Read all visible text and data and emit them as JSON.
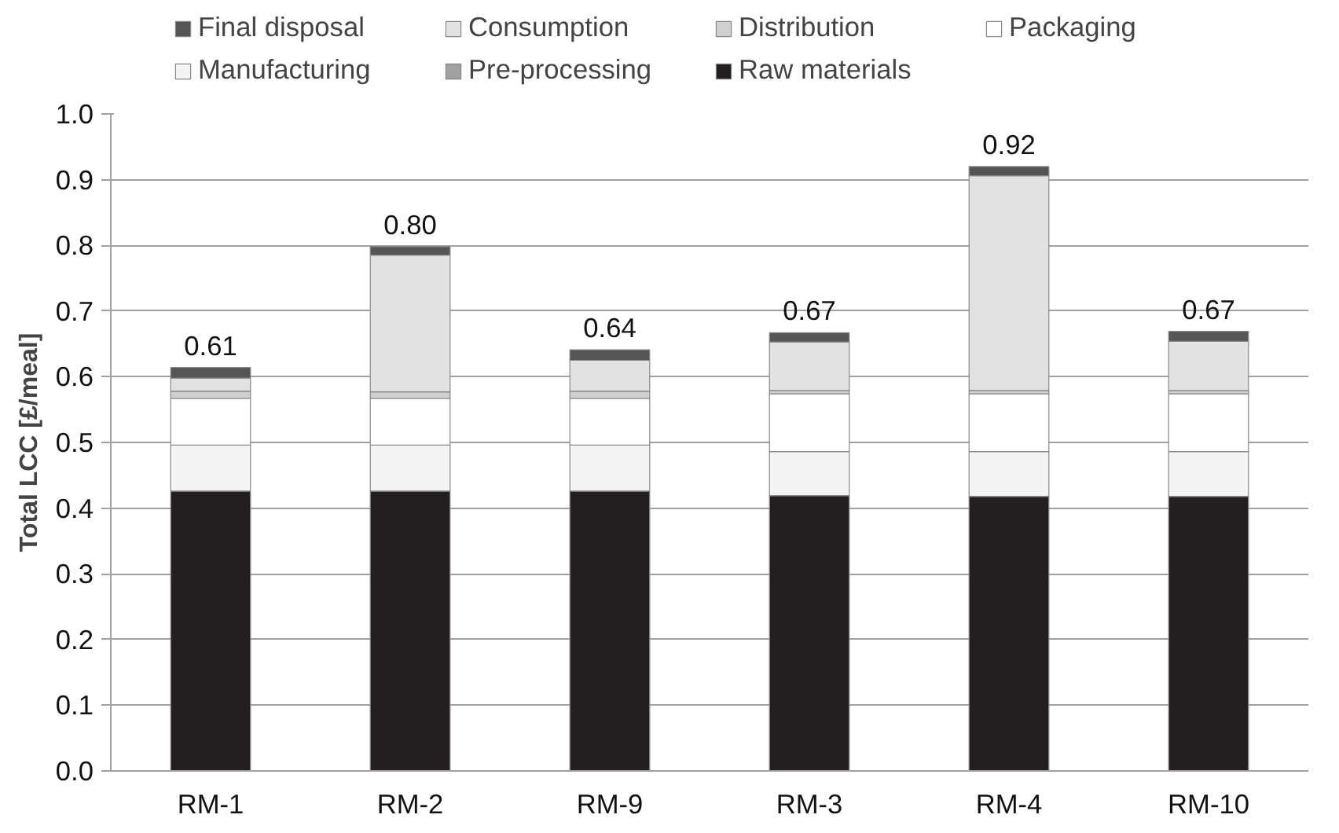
{
  "chart_data": {
    "type": "bar",
    "stacked": true,
    "ylabel": "Total LCC [£/meal]",
    "categories": [
      "RM-1",
      "RM-2",
      "RM-9",
      "RM-3",
      "RM-4",
      "RM-10"
    ],
    "series": [
      {
        "name": "Raw materials",
        "color": "#231f20",
        "values": [
          0.426,
          0.426,
          0.426,
          0.419,
          0.418,
          0.418
        ]
      },
      {
        "name": "Pre-processing",
        "color": "#a0a0a0",
        "values": [
          null,
          null,
          null,
          null,
          null,
          null
        ]
      },
      {
        "name": "Manufacturing",
        "color": "#f4f4f4",
        "values": [
          0.07,
          0.07,
          0.07,
          0.067,
          0.068,
          0.068
        ]
      },
      {
        "name": "Packaging",
        "color": "#ffffff",
        "values": [
          0.071,
          0.071,
          0.071,
          0.088,
          0.088,
          0.088
        ]
      },
      {
        "name": "Distribution",
        "color": "#d0d0d0",
        "values": [
          0.011,
          0.01,
          0.011,
          0.005,
          0.005,
          0.005
        ]
      },
      {
        "name": "Consumption",
        "color": "#e2e2e2",
        "values": [
          0.02,
          0.208,
          0.047,
          0.074,
          0.327,
          0.075
        ]
      },
      {
        "name": "Final disposal",
        "color": "#555555",
        "values": [
          0.016,
          0.013,
          0.016,
          0.014,
          0.014,
          0.015
        ]
      }
    ],
    "totals": [
      "0.61",
      "0.80",
      "0.64",
      "0.67",
      "0.92",
      "0.67"
    ],
    "ylim": [
      0,
      1.0
    ],
    "yticks": [
      {
        "value": 0,
        "label": "0.0"
      },
      {
        "value": 0.1,
        "label": "0.1"
      },
      {
        "value": 0.2,
        "label": "0.2"
      },
      {
        "value": 0.3,
        "label": "0.3"
      },
      {
        "value": 0.4,
        "label": "0.4"
      },
      {
        "value": 0.5,
        "label": "0.5"
      },
      {
        "value": 0.6,
        "label": "0.6"
      },
      {
        "value": 0.7,
        "label": "0.7"
      },
      {
        "value": 0.8,
        "label": "0.8"
      },
      {
        "value": 0.9,
        "label": "0.9"
      },
      {
        "value": 1.0,
        "label": "1.0"
      }
    ],
    "grid": "y",
    "legend": "top"
  }
}
